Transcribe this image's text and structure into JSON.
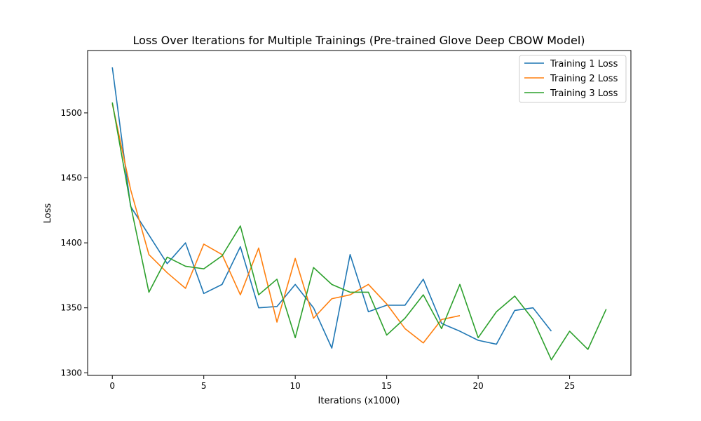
{
  "chart_data": {
    "type": "line",
    "title": "Loss Over Iterations for Multiple Trainings (Pre-trained Glove Deep CBOW Model)",
    "xlabel": "Iterations (x1000)",
    "ylabel": "Loss",
    "xlim": [
      -1.35,
      28.35
    ],
    "ylim": [
      1298,
      1548
    ],
    "xticks": [
      0,
      5,
      10,
      15,
      20,
      25
    ],
    "yticks": [
      1300,
      1350,
      1400,
      1450,
      1500
    ],
    "grid": false,
    "legend_position": "top-right",
    "series": [
      {
        "name": "Training 1 Loss",
        "color": "#1f77b4",
        "x": [
          0,
          1,
          2,
          3,
          4,
          5,
          6,
          7,
          8,
          9,
          10,
          11,
          12,
          13,
          14,
          15,
          16,
          17,
          18,
          19,
          20,
          21,
          22,
          23,
          24
        ],
        "values": [
          1535,
          1428,
          1406,
          1384,
          1400,
          1361,
          1368,
          1397,
          1350,
          1351,
          1368,
          1350,
          1319,
          1391,
          1347,
          1352,
          1352,
          1372,
          1338,
          1332,
          1325,
          1322,
          1348,
          1350,
          1332
        ]
      },
      {
        "name": "Training 2 Loss",
        "color": "#ff7f0e",
        "x": [
          0,
          1,
          2,
          3,
          4,
          5,
          6,
          7,
          8,
          9,
          10,
          11,
          12,
          13,
          14,
          15,
          16,
          17,
          18,
          19
        ],
        "values": [
          1507,
          1441,
          1391,
          1377,
          1365,
          1399,
          1391,
          1360,
          1396,
          1339,
          1388,
          1342,
          1357,
          1360,
          1368,
          1353,
          1334,
          1323,
          1341,
          1344
        ]
      },
      {
        "name": "Training 3 Loss",
        "color": "#2ca02c",
        "x": [
          0,
          1,
          2,
          3,
          4,
          5,
          6,
          7,
          8,
          9,
          10,
          11,
          12,
          13,
          14,
          15,
          16,
          17,
          18,
          19,
          20,
          21,
          22,
          23,
          24,
          25,
          26,
          27
        ],
        "values": [
          1508,
          1429,
          1362,
          1389,
          1382,
          1380,
          1390,
          1413,
          1360,
          1372,
          1327,
          1381,
          1368,
          1362,
          1362,
          1329,
          1342,
          1360,
          1334,
          1368,
          1327,
          1347,
          1359,
          1341,
          1310,
          1332,
          1318,
          1349
        ]
      }
    ]
  }
}
